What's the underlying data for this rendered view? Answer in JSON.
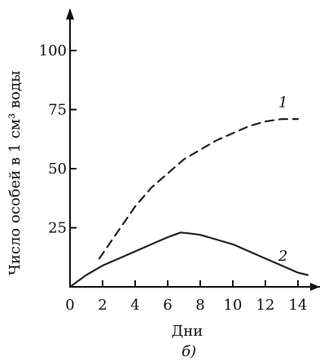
{
  "chart_data": {
    "type": "line",
    "title": "",
    "xlabel": "Дни",
    "ylabel": "Число особей в 1 см³ воды",
    "subcaption": "б)",
    "xlim": [
      0,
      15
    ],
    "ylim": [
      0,
      110
    ],
    "x_ticks": [
      "0",
      "2",
      "4",
      "6",
      "8",
      "10",
      "12",
      "14"
    ],
    "y_ticks": [
      "25",
      "50",
      "75",
      "100"
    ],
    "grid": false,
    "series": [
      {
        "name": "1",
        "style": "dashed",
        "color": "#222222",
        "x": [
          1.8,
          3,
          4,
          5,
          6,
          7,
          8,
          9,
          10,
          11,
          12,
          13,
          14
        ],
        "y": [
          12,
          24,
          34,
          42,
          48,
          54,
          58,
          62,
          65,
          68,
          70,
          71,
          71
        ]
      },
      {
        "name": "2",
        "style": "solid",
        "color": "#222222",
        "x": [
          0,
          1,
          2,
          3,
          4,
          5,
          6,
          6.8,
          7.5,
          8,
          9,
          10,
          11,
          12,
          13,
          14,
          14.6
        ],
        "y": [
          0,
          5,
          9,
          12,
          15,
          18,
          21,
          23,
          22.5,
          22,
          20,
          18,
          15,
          12,
          9,
          6,
          5
        ]
      }
    ]
  }
}
